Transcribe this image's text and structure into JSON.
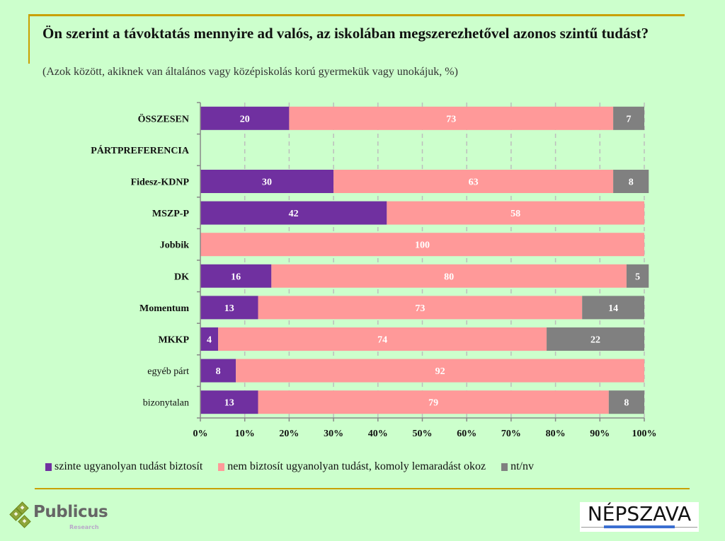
{
  "header": {
    "title": "Ön szerint a távoktatás mennyire ad valós, az iskolában megszerezhetővel azonos szintű tudást?",
    "subtitle": "(Azok között, akiknek van általános vagy középiskolás korú gyermekük vagy unokájuk, %)"
  },
  "chart_data": {
    "type": "bar",
    "orientation": "horizontal",
    "stacked": true,
    "title": "Ön szerint a távoktatás mennyire ad valós, az iskolában megszerezhetővel azonos szintű tudást?",
    "subtitle": "(Azok között, akiknek van általános vagy középiskolás korú gyermekük vagy unokájuk, %)",
    "categories": [
      "ÖSSZESEN",
      "PÁRTPREFERENCIA",
      "Fidesz-KDNP",
      "MSZP-P",
      "Jobbik",
      "DK",
      "Momentum",
      "MKKP",
      "egyéb párt",
      "bizonytalan"
    ],
    "category_bold": [
      true,
      true,
      true,
      true,
      true,
      true,
      true,
      true,
      false,
      false
    ],
    "series": [
      {
        "name": "szinte ugyanolyan tudást biztosít",
        "color": "#7030a0",
        "values": [
          20,
          null,
          30,
          42,
          0,
          16,
          13,
          4,
          8,
          13
        ]
      },
      {
        "name": "nem biztosít ugyanolyan tudást, komoly lemaradást okoz",
        "color": "#ff9999",
        "values": [
          73,
          null,
          63,
          58,
          100,
          80,
          73,
          74,
          92,
          79
        ]
      },
      {
        "name": "nt/nv",
        "color": "#808080",
        "values": [
          7,
          null,
          8,
          0,
          0,
          5,
          14,
          22,
          0,
          8
        ]
      }
    ],
    "data_labels": [
      [
        "20",
        "73",
        "7"
      ],
      [
        null,
        null,
        null
      ],
      [
        "30",
        "63",
        "8"
      ],
      [
        "42",
        "58",
        null
      ],
      [
        null,
        "100",
        null
      ],
      [
        "16",
        "80",
        "5"
      ],
      [
        "13",
        "73",
        "14"
      ],
      [
        "4",
        "74",
        "22"
      ],
      [
        "8",
        "92",
        null
      ],
      [
        "13",
        "79",
        "8"
      ]
    ],
    "xlim": [
      0,
      100
    ],
    "x_ticks": [
      "0%",
      "10%",
      "20%",
      "30%",
      "40%",
      "50%",
      "60%",
      "70%",
      "80%",
      "90%",
      "100%"
    ],
    "xlabel": "",
    "ylabel": "",
    "grid": "vertical dashed",
    "legend": "bottom"
  },
  "legend": {
    "items": [
      {
        "label": "szinte ugyanolyan tudást biztosít",
        "color": "#7030a0"
      },
      {
        "label": "nem biztosít ugyanolyan tudást, komoly lemaradást okoz",
        "color": "#ff9999"
      },
      {
        "label": "nt/nv",
        "color": "#808080"
      }
    ]
  },
  "logos": {
    "publicus_name": "Publicus",
    "publicus_sub": "Research",
    "nepszava": "NÉPSZAVA"
  }
}
